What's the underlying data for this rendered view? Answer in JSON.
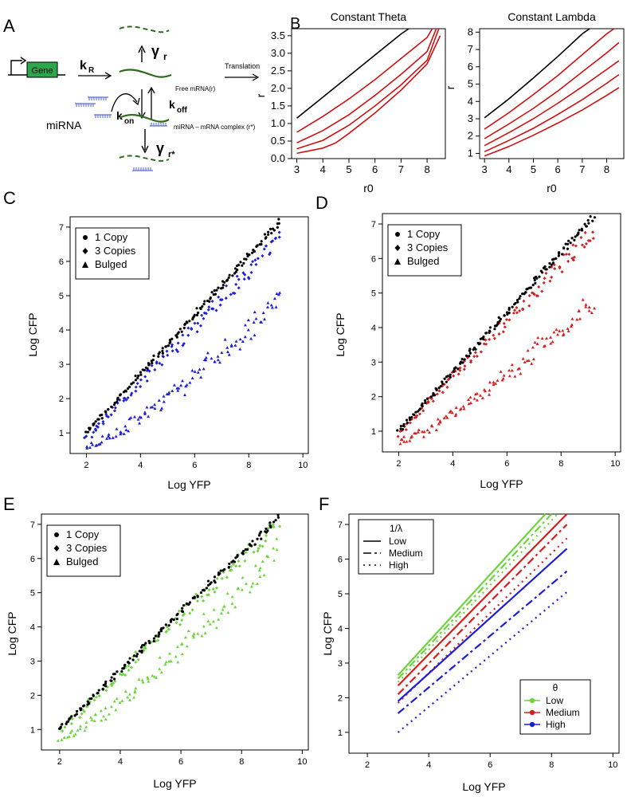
{
  "panels": {
    "a": "A",
    "b": "B",
    "c": "C",
    "d": "D",
    "e": "E",
    "f": "F"
  },
  "diagram": {
    "gene": "Gene",
    "k_r": "k",
    "k_r_sub": "R",
    "gamma_r": "γ",
    "gamma_r_sub": "r",
    "translation": "Translation",
    "free_mrna": "Free mRNA(r)",
    "k_off": "k",
    "k_off_sub": "off",
    "k_on": "k",
    "k_on_sub": "on",
    "mirna": "miRNA",
    "complex": "miRNA – mRNA complex (r*)",
    "gamma_rstar": "γ",
    "gamma_rstar_sub": "r*",
    "colors": {
      "gene_box": "#2ca84a",
      "mrna": "#2e6b1e",
      "mirna": "#3a4fd0"
    }
  },
  "chart_data": [
    {
      "id": "b1",
      "type": "line",
      "title": "Constant Theta",
      "xlabel": "r0",
      "ylabel": "r",
      "xlim": [
        2.8,
        8.7
      ],
      "ylim": [
        0,
        3.7
      ],
      "xticks": [
        "3",
        "4",
        "5",
        "6",
        "7",
        "8"
      ],
      "yticks": [
        "0.0",
        "0.5",
        "1.0",
        "1.5",
        "2.0",
        "2.5",
        "3.0",
        "3.5"
      ],
      "series": [
        {
          "color": "#000000",
          "x": [
            3,
            4,
            5,
            6,
            7,
            7.3
          ],
          "y": [
            1.15,
            1.75,
            2.35,
            2.95,
            3.55,
            3.7
          ]
        },
        {
          "color": "#cc1111",
          "x": [
            3,
            4,
            5,
            6,
            7,
            8,
            8.2
          ],
          "y": [
            0.75,
            1.2,
            1.7,
            2.25,
            2.85,
            3.45,
            3.7
          ]
        },
        {
          "color": "#cc1111",
          "x": [
            3,
            4,
            5,
            6,
            7,
            8,
            8.35
          ],
          "y": [
            0.45,
            0.8,
            1.25,
            1.8,
            2.4,
            3.05,
            3.7
          ]
        },
        {
          "color": "#cc1111",
          "x": [
            3,
            4,
            5,
            6,
            7,
            8,
            8.45
          ],
          "y": [
            0.28,
            0.52,
            0.95,
            1.5,
            2.1,
            2.8,
            3.7
          ]
        },
        {
          "color": "#cc1111",
          "x": [
            3,
            4,
            4.5,
            5,
            6,
            7,
            8,
            8.5
          ],
          "y": [
            0.15,
            0.3,
            0.45,
            0.72,
            1.3,
            1.95,
            2.7,
            3.5
          ]
        }
      ]
    },
    {
      "id": "b2",
      "type": "line",
      "title": "Constant Lambda",
      "xlabel": "r0",
      "ylabel": "r",
      "xlim": [
        2.8,
        8.7
      ],
      "ylim": [
        0.7,
        8.2
      ],
      "xticks": [
        "3",
        "4",
        "5",
        "6",
        "7",
        "8"
      ],
      "yticks": [
        "1",
        "2",
        "3",
        "4",
        "5",
        "6",
        "7",
        "8"
      ],
      "series": [
        {
          "color": "#000000",
          "x": [
            3,
            4,
            5,
            6,
            7,
            7.3
          ],
          "y": [
            3.05,
            4.15,
            5.35,
            6.6,
            7.9,
            8.2
          ]
        },
        {
          "color": "#cc1111",
          "x": [
            3,
            4,
            5,
            6,
            7,
            8,
            8.3
          ],
          "y": [
            2.4,
            3.35,
            4.4,
            5.5,
            6.7,
            7.9,
            8.2
          ]
        },
        {
          "color": "#cc1111",
          "x": [
            3,
            4,
            5,
            6,
            7,
            8,
            8.5
          ],
          "y": [
            1.85,
            2.7,
            3.6,
            4.6,
            5.7,
            6.8,
            7.4
          ]
        },
        {
          "color": "#cc1111",
          "x": [
            3,
            4,
            5,
            6,
            7,
            8,
            8.5
          ],
          "y": [
            1.45,
            2.2,
            3.0,
            3.9,
            4.85,
            5.85,
            6.35
          ]
        },
        {
          "color": "#cc1111",
          "x": [
            3,
            4,
            5,
            6,
            7,
            8,
            8.5
          ],
          "y": [
            1.1,
            1.75,
            2.45,
            3.25,
            4.1,
            5.05,
            5.55
          ]
        },
        {
          "color": "#cc1111",
          "x": [
            3,
            4,
            5,
            6,
            7,
            8,
            8.5
          ],
          "y": [
            0.85,
            1.4,
            2.05,
            2.75,
            3.5,
            4.35,
            4.8
          ]
        }
      ]
    },
    {
      "id": "c",
      "type": "scatter",
      "xlabel": "Log YFP",
      "ylabel": "Log CFP",
      "xlim": [
        1.4,
        10.2
      ],
      "ylim": [
        0.4,
        7.3
      ],
      "xticks": [
        "2",
        "4",
        "6",
        "8",
        "10"
      ],
      "yticks": [
        "1",
        "2",
        "3",
        "4",
        "5",
        "6",
        "7"
      ],
      "legend": [
        "1 Copy",
        "3 Copies",
        "Bulged"
      ],
      "legend_loc": "top-left",
      "series": [
        {
          "name": "1 Copy",
          "color": "#000000",
          "x": [
            2,
            9.2
          ],
          "y": [
            1.0,
            7.2
          ]
        },
        {
          "name": "3 Copies",
          "color": "#1d1dd8",
          "x": [
            2,
            9.2
          ],
          "y": [
            0.85,
            6.7
          ]
        },
        {
          "name": "Bulged",
          "color": "#1d1dd8",
          "x": [
            2,
            9.2
          ],
          "y": [
            0.6,
            5.2
          ]
        }
      ]
    },
    {
      "id": "d",
      "type": "scatter",
      "xlabel": "Log YFP",
      "ylabel": "Log CFP",
      "xlim": [
        1.4,
        10.2
      ],
      "ylim": [
        0.4,
        7.3
      ],
      "xticks": [
        "2",
        "4",
        "6",
        "8",
        "10"
      ],
      "yticks": [
        "1",
        "2",
        "3",
        "4",
        "5",
        "6",
        "7"
      ],
      "legend": [
        "1 Copy",
        "3 Copies",
        "Bulged"
      ],
      "legend_loc": "top-left",
      "series": [
        {
          "name": "1 Copy",
          "color": "#000000",
          "x": [
            2,
            9.2
          ],
          "y": [
            1.0,
            7.2
          ]
        },
        {
          "name": "3 Copies",
          "color": "#d61e1e",
          "x": [
            2,
            9.2
          ],
          "y": [
            0.9,
            6.8
          ]
        },
        {
          "name": "Bulged",
          "color": "#d61e1e",
          "x": [
            2,
            9.2
          ],
          "y": [
            0.7,
            5.0
          ]
        }
      ]
    },
    {
      "id": "e",
      "type": "scatter",
      "xlabel": "Log YFP",
      "ylabel": "Log CFP",
      "xlim": [
        1.4,
        10.2
      ],
      "ylim": [
        0.4,
        7.3
      ],
      "xticks": [
        "2",
        "4",
        "6",
        "8",
        "10"
      ],
      "yticks": [
        "1",
        "2",
        "3",
        "4",
        "5",
        "6",
        "7"
      ],
      "legend": [
        "1 Copy",
        "3 Copies",
        "Bulged"
      ],
      "legend_loc": "top-left",
      "series": [
        {
          "name": "1 Copy",
          "color": "#000000",
          "x": [
            2,
            9.2
          ],
          "y": [
            1.0,
            7.2
          ]
        },
        {
          "name": "3 Copies",
          "color": "#6dd43c",
          "x": [
            2,
            9.2
          ],
          "y": [
            0.95,
            7.0
          ]
        },
        {
          "name": "Bulged",
          "color": "#6dd43c",
          "x": [
            2,
            9.2
          ],
          "y": [
            0.75,
            6.5
          ]
        }
      ]
    },
    {
      "id": "f",
      "type": "line",
      "xlabel": "Log YFP",
      "ylabel": "Log CFP",
      "xlim": [
        1.4,
        10.2
      ],
      "ylim": [
        0.4,
        7.3
      ],
      "xticks": [
        "2",
        "4",
        "6",
        "8",
        "10"
      ],
      "yticks": [
        "1",
        "2",
        "3",
        "4",
        "5",
        "6",
        "7"
      ],
      "legend_lambda": {
        "title": "1/λ",
        "items": [
          "Low",
          "Medium",
          "High"
        ]
      },
      "legend_theta": {
        "title": "θ",
        "items": [
          "Low",
          "Medium",
          "High"
        ],
        "colors": [
          "#6dd43c",
          "#d61e1e",
          "#1d1dd8"
        ]
      },
      "series": [
        {
          "theta": "Low",
          "lambda": "Low",
          "color": "#6dd43c",
          "x": [
            3,
            7.8
          ],
          "y": [
            2.65,
            7.3
          ]
        },
        {
          "theta": "Low",
          "lambda": "Medium",
          "color": "#6dd43c",
          "x": [
            3,
            8.0
          ],
          "y": [
            2.55,
            7.3
          ]
        },
        {
          "theta": "Low",
          "lambda": "High",
          "color": "#6dd43c",
          "x": [
            3,
            8.2
          ],
          "y": [
            2.45,
            7.3
          ]
        },
        {
          "theta": "Medium",
          "lambda": "Low",
          "color": "#d61e1e",
          "x": [
            3,
            8.5
          ],
          "y": [
            2.35,
            7.3
          ]
        },
        {
          "theta": "Medium",
          "lambda": "Medium",
          "color": "#d61e1e",
          "x": [
            3,
            8.5
          ],
          "y": [
            2.1,
            7.0
          ]
        },
        {
          "theta": "Medium",
          "lambda": "High",
          "color": "#d61e1e",
          "x": [
            3,
            8.5
          ],
          "y": [
            1.85,
            6.6
          ]
        },
        {
          "theta": "High",
          "lambda": "Low",
          "color": "#1d1dd8",
          "x": [
            3,
            8.5
          ],
          "y": [
            1.9,
            6.3
          ]
        },
        {
          "theta": "High",
          "lambda": "Medium",
          "color": "#1d1dd8",
          "x": [
            3,
            8.5
          ],
          "y": [
            1.55,
            5.65
          ]
        },
        {
          "theta": "High",
          "lambda": "High",
          "color": "#1d1dd8",
          "x": [
            3,
            8.5
          ],
          "y": [
            1.0,
            5.05
          ]
        }
      ]
    }
  ]
}
